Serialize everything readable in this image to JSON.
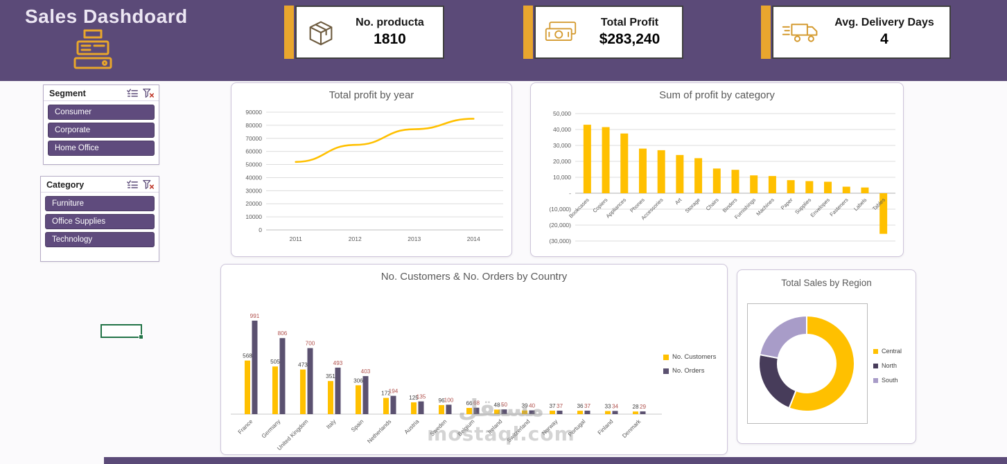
{
  "header": {
    "title": "Sales Dashdoard"
  },
  "theme": {
    "purple": "#5B4A78",
    "gold_accent": "#E9A62E",
    "chart_yellow": "#FFC000",
    "bar_purple": "#5B5170",
    "slicer_button": "#5F4B7D",
    "selection_green": "#217346"
  },
  "kpis": [
    {
      "icon": "package-icon",
      "label": "No. producta",
      "value": "1810"
    },
    {
      "icon": "money-icon",
      "label": "Total Profit",
      "value": "$283,240"
    },
    {
      "icon": "truck-icon",
      "label": "Avg. Delivery Days",
      "value": "4"
    }
  ],
  "slicers": [
    {
      "title": "Segment",
      "items": [
        "Consumer",
        "Corporate",
        "Home Office"
      ]
    },
    {
      "title": "Category",
      "items": [
        "Furniture",
        "Office Supplies",
        "Technology"
      ]
    }
  ],
  "watermark": {
    "line1": "مستقل",
    "line2": "mostaql.com"
  },
  "chart_data": [
    {
      "id": "total_profit_by_year",
      "type": "line",
      "title": "Total profit by year",
      "x": [
        "2011",
        "2012",
        "2013",
        "2014"
      ],
      "values": [
        52000,
        65000,
        77000,
        85000
      ],
      "ylim": [
        0,
        90000
      ],
      "ytick_step": 10000,
      "line_color": "#FFC000",
      "grid": true
    },
    {
      "id": "sum_of_profit_by_category",
      "type": "bar",
      "title": "Sum of profit by category",
      "categories": [
        "Bookcases",
        "Copiers",
        "Appliances",
        "Phones",
        "Accessories",
        "Art",
        "Storage",
        "Chairs",
        "Binders",
        "Furnishings",
        "Machines",
        "Paper",
        "Supplies",
        "Envelopes",
        "Fasteners",
        "Labels",
        "Tables"
      ],
      "values": [
        43000,
        41500,
        37500,
        28000,
        27000,
        24000,
        22000,
        15500,
        14700,
        11200,
        10800,
        8200,
        7600,
        7200,
        4100,
        3600,
        -25500
      ],
      "ylim": [
        -30000,
        50000
      ],
      "ytick_labels": [
        "50,000",
        "40,000",
        "30,000",
        "20,000",
        "10,000",
        "-",
        "(10,000)",
        "(20,000)",
        "(30,000)"
      ],
      "bar_color": "#FFC000",
      "grid": true
    },
    {
      "id": "customers_and_orders_by_country",
      "type": "bar",
      "title": "No. Customers & No. Orders by Country",
      "categories": [
        "France",
        "Germany",
        "United Kingdom",
        "Italy",
        "Spain",
        "Netherlands",
        "Austria",
        "Sweden",
        "Belgium",
        "Ireland",
        "Switzerland",
        "Norway",
        "Portugal",
        "Finland",
        "Denmark"
      ],
      "series": [
        {
          "name": "No. Customers",
          "color": "#FFC000",
          "label_color": "#404040",
          "values": [
            568,
            505,
            473,
            351,
            306,
            172,
            125,
            96,
            66,
            48,
            39,
            37,
            36,
            33,
            28
          ]
        },
        {
          "name": "No. Orders",
          "color": "#5B5170",
          "label_color": "#B0504C",
          "values": [
            991,
            806,
            700,
            493,
            403,
            194,
            135,
            100,
            68,
            50,
            40,
            37,
            37,
            34,
            29
          ]
        }
      ],
      "legend_position": "right"
    },
    {
      "id": "total_sales_by_region",
      "type": "pie",
      "title": "Total Sales by Region",
      "labels": [
        "Central",
        "North",
        "South"
      ],
      "values": [
        56,
        22,
        22
      ],
      "colors": [
        "#FFC000",
        "#473C5A",
        "#A89CC8"
      ],
      "donut": true,
      "legend_position": "right"
    }
  ]
}
